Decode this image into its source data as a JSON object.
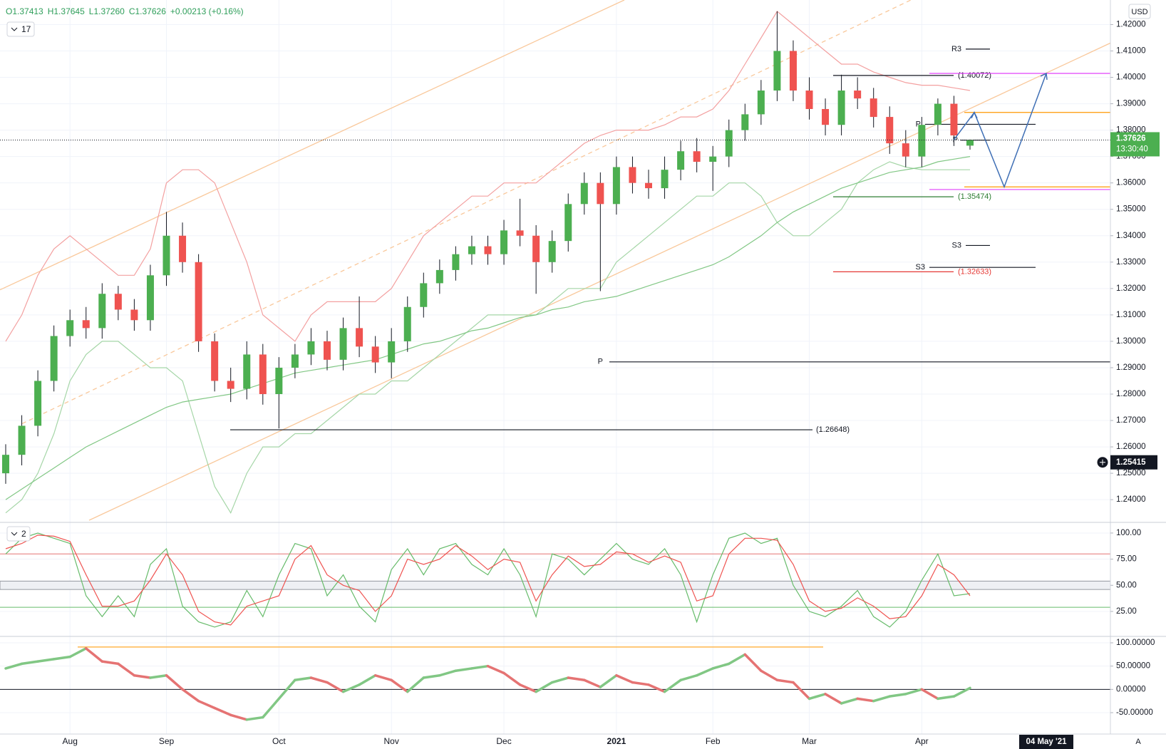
{
  "chart_data": {
    "type": "candlestick",
    "legend_items": [
      "O1.37413",
      "H1.37645",
      "L1.37260",
      "C1.37626",
      "+0.00213 (+0.16%)"
    ],
    "indicator_count": "17",
    "currency": "USD",
    "categories": [
      "",
      "",
      "",
      "",
      "Aug",
      null,
      null,
      null,
      null,
      null,
      "Sep",
      null,
      null,
      null,
      null,
      null,
      null,
      "Oct",
      null,
      null,
      null,
      null,
      null,
      null,
      "Nov",
      null,
      null,
      null,
      null,
      null,
      null,
      "Dec",
      null,
      null,
      null,
      null,
      null,
      null,
      "2021",
      null,
      null,
      null,
      null,
      null,
      "Feb",
      null,
      null,
      null,
      null,
      null,
      "Mar",
      null,
      null,
      null,
      null,
      null,
      null,
      "Apr",
      null,
      null,
      null
    ],
    "open": [
      1.25,
      1.257,
      1.268,
      1.285,
      1.302,
      1.308,
      1.305,
      1.318,
      1.312,
      1.308,
      1.325,
      1.34,
      1.33,
      1.3,
      1.285,
      1.282,
      1.295,
      1.28,
      1.29,
      1.295,
      1.3,
      1.293,
      1.305,
      1.298,
      1.292,
      1.3,
      1.313,
      1.322,
      1.327,
      1.333,
      1.336,
      1.333,
      1.342,
      1.34,
      1.33,
      1.338,
      1.352,
      1.36,
      1.352,
      1.366,
      1.36,
      1.358,
      1.365,
      1.372,
      1.368,
      1.37,
      1.38,
      1.386,
      1.395,
      1.41,
      1.395,
      1.388,
      1.382,
      1.395,
      1.392,
      1.385,
      1.375,
      1.37,
      1.382,
      1.39,
      1.37413
    ],
    "high": [
      1.261,
      1.272,
      1.289,
      1.306,
      1.312,
      1.313,
      1.322,
      1.321,
      1.316,
      1.329,
      1.349,
      1.345,
      1.333,
      1.303,
      1.29,
      1.3,
      1.299,
      1.294,
      1.299,
      1.305,
      1.304,
      1.309,
      1.317,
      1.302,
      1.305,
      1.317,
      1.326,
      1.331,
      1.336,
      1.34,
      1.34,
      1.346,
      1.354,
      1.344,
      1.342,
      1.356,
      1.364,
      1.364,
      1.37,
      1.37,
      1.365,
      1.37,
      1.376,
      1.377,
      1.374,
      1.384,
      1.39,
      1.399,
      1.425,
      1.414,
      1.4,
      1.392,
      1.401,
      1.4,
      1.396,
      1.389,
      1.38,
      1.385,
      1.392,
      1.393,
      1.37645
    ],
    "low": [
      1.246,
      1.253,
      1.264,
      1.281,
      1.298,
      1.301,
      1.301,
      1.308,
      1.304,
      1.304,
      1.321,
      1.326,
      1.296,
      1.281,
      1.277,
      1.278,
      1.276,
      1.267,
      1.286,
      1.291,
      1.289,
      1.289,
      1.294,
      1.288,
      1.286,
      1.296,
      1.309,
      1.318,
      1.323,
      1.329,
      1.329,
      1.329,
      1.336,
      1.318,
      1.326,
      1.334,
      1.348,
      1.319,
      1.348,
      1.356,
      1.354,
      1.354,
      1.361,
      1.364,
      1.357,
      1.366,
      1.376,
      1.382,
      1.391,
      1.391,
      1.384,
      1.378,
      1.378,
      1.388,
      1.381,
      1.371,
      1.366,
      1.366,
      1.378,
      1.374,
      1.3726
    ],
    "close": [
      1.257,
      1.268,
      1.285,
      1.302,
      1.308,
      1.305,
      1.318,
      1.312,
      1.308,
      1.325,
      1.34,
      1.33,
      1.3,
      1.285,
      1.282,
      1.295,
      1.28,
      1.29,
      1.295,
      1.3,
      1.293,
      1.305,
      1.298,
      1.292,
      1.3,
      1.313,
      1.322,
      1.327,
      1.333,
      1.336,
      1.333,
      1.342,
      1.34,
      1.33,
      1.338,
      1.352,
      1.36,
      1.352,
      1.366,
      1.36,
      1.358,
      1.365,
      1.372,
      1.368,
      1.37,
      1.38,
      1.386,
      1.395,
      1.41,
      1.395,
      1.388,
      1.382,
      1.395,
      1.392,
      1.385,
      1.375,
      1.37,
      1.382,
      1.39,
      1.378,
      1.37626
    ],
    "up_color": "#4caf50",
    "down_color": "#ef5350",
    "upper_band": {
      "color": "#f3a0a0",
      "values": [
        1.3,
        1.31,
        1.325,
        1.335,
        1.34,
        1.335,
        1.33,
        1.325,
        1.325,
        1.335,
        1.36,
        1.365,
        1.365,
        1.36,
        1.345,
        1.33,
        1.31,
        1.305,
        1.3,
        1.31,
        1.315,
        1.315,
        1.315,
        1.315,
        1.32,
        1.33,
        1.34,
        1.345,
        1.35,
        1.355,
        1.355,
        1.36,
        1.36,
        1.36,
        1.365,
        1.37,
        1.375,
        1.378,
        1.38,
        1.38,
        1.38,
        1.382,
        1.385,
        1.385,
        1.388,
        1.395,
        1.405,
        1.415,
        1.425,
        1.42,
        1.415,
        1.41,
        1.405,
        1.405,
        1.402,
        1.4,
        1.398,
        1.397,
        1.397,
        1.396,
        1.395
      ]
    },
    "lower_band": {
      "color": "#a5d6a7",
      "values": [
        1.235,
        1.24,
        1.25,
        1.265,
        1.285,
        1.295,
        1.3,
        1.3,
        1.295,
        1.29,
        1.29,
        1.285,
        1.265,
        1.245,
        1.235,
        1.25,
        1.26,
        1.26,
        1.265,
        1.265,
        1.27,
        1.275,
        1.28,
        1.28,
        1.285,
        1.285,
        1.29,
        1.295,
        1.3,
        1.305,
        1.31,
        1.31,
        1.31,
        1.31,
        1.315,
        1.32,
        1.32,
        1.32,
        1.33,
        1.335,
        1.34,
        1.345,
        1.35,
        1.355,
        1.355,
        1.36,
        1.36,
        1.355,
        1.345,
        1.34,
        1.34,
        1.345,
        1.35,
        1.36,
        1.365,
        1.368,
        1.366,
        1.365,
        1.365,
        1.365,
        1.365
      ]
    },
    "ma": {
      "color": "#81c784",
      "values": [
        1.24,
        1.244,
        1.248,
        1.252,
        1.256,
        1.26,
        1.263,
        1.266,
        1.269,
        1.272,
        1.275,
        1.277,
        1.278,
        1.279,
        1.28,
        1.282,
        1.284,
        1.286,
        1.288,
        1.289,
        1.29,
        1.291,
        1.292,
        1.293,
        1.295,
        1.297,
        1.299,
        1.3,
        1.302,
        1.304,
        1.305,
        1.307,
        1.309,
        1.31,
        1.312,
        1.313,
        1.315,
        1.316,
        1.317,
        1.319,
        1.321,
        1.323,
        1.325,
        1.327,
        1.329,
        1.332,
        1.336,
        1.34,
        1.345,
        1.349,
        1.352,
        1.355,
        1.358,
        1.36,
        1.362,
        1.364,
        1.365,
        1.366,
        1.368,
        1.369,
        1.37
      ]
    },
    "trend_lines": [
      {
        "values": [
          1.3195,
          1.4293
        ],
        "color": "#f9c89b"
      },
      {
        "values": [
          1.2322,
          1.413
        ],
        "color": "#f9c89b"
      },
      {
        "values": [
          1.2688,
          1.4293
        ],
        "color": "#f9c89b",
        "dashed": true
      }
    ],
    "levels": [
      {
        "label": "R3",
        "value": 1.4107,
        "color": "#131722"
      },
      {
        "label": "(1.40072)",
        "value": 1.40072,
        "color": "#131722"
      },
      {
        "label": "P",
        "value": 1.3822,
        "color": "#131722"
      },
      {
        "label": "P",
        "value": 1.3762,
        "color": "#131722"
      },
      {
        "label": "(1.35474)",
        "value": 1.35474,
        "color": "#2e7d32"
      },
      {
        "label": "S3",
        "value": 1.3363,
        "color": "#131722"
      },
      {
        "label": "S3",
        "value": 1.328,
        "color": "#131722"
      },
      {
        "label": "(1.32633)",
        "value": 1.32633,
        "color": "#e53935"
      },
      {
        "label": "P",
        "value": 1.2922,
        "color": "#131722"
      },
      {
        "label": "(1.26648)",
        "value": 1.26648,
        "color": "#131722"
      }
    ],
    "guide_lines": [
      {
        "value": 1.4015,
        "color": "#e040fb"
      },
      {
        "value": 1.3867,
        "color": "#ff9800"
      },
      {
        "value": 1.3575,
        "color": "#e040fb"
      },
      {
        "value": 1.3585,
        "color": "#ff9800"
      }
    ],
    "projection": {
      "values": [
        1.3762,
        1.3867,
        1.3585,
        1.4015
      ],
      "color": "#3f6fb5"
    },
    "ylim": [
      1.2314,
      1.4293
    ],
    "yticks": [
      {
        "value": 1.24,
        "label": "1.24000"
      },
      {
        "value": 1.25,
        "label": "1.25000"
      },
      {
        "value": 1.26,
        "label": "1.26000"
      },
      {
        "value": 1.27,
        "label": "1.27000"
      },
      {
        "value": 1.28,
        "label": "1.28000"
      },
      {
        "value": 1.29,
        "label": "1.29000"
      },
      {
        "value": 1.3,
        "label": "1.30000"
      },
      {
        "value": 1.31,
        "label": "1.31000"
      },
      {
        "value": 1.32,
        "label": "1.32000"
      },
      {
        "value": 1.33,
        "label": "1.33000"
      },
      {
        "value": 1.34,
        "label": "1.34000"
      },
      {
        "value": 1.35,
        "label": "1.35000"
      },
      {
        "value": 1.36,
        "label": "1.36000"
      },
      {
        "value": 1.37,
        "label": "1.37000"
      },
      {
        "value": 1.38,
        "label": "1.38000"
      },
      {
        "value": 1.39,
        "label": "1.39000"
      },
      {
        "value": 1.4,
        "label": "1.40000"
      },
      {
        "value": 1.41,
        "label": "1.41000"
      },
      {
        "value": 1.42,
        "label": "1.42000"
      }
    ],
    "last_price": 1.37626,
    "countdown": "13:30:40",
    "crosshair_price": 1.25415,
    "grid": true,
    "time_marker": "04 May '21",
    "scale_mode": "A",
    "stochastic": {
      "indicator_count": "2",
      "ylim": [
        1.1,
        110.2
      ],
      "yticks": [
        {
          "value": 25,
          "label": "25.00"
        },
        {
          "value": 50,
          "label": "50.00"
        },
        {
          "value": 75,
          "label": "75.00"
        },
        {
          "value": 100,
          "label": "100.00"
        }
      ],
      "upper_level": 80,
      "band": [
        46,
        54
      ],
      "lower_level": 29,
      "series": [
        {
          "color": "#66bb6a",
          "values": [
            80,
            95,
            100,
            95,
            90,
            40,
            20,
            40,
            20,
            70,
            85,
            30,
            15,
            10,
            15,
            45,
            20,
            60,
            90,
            85,
            40,
            60,
            30,
            15,
            65,
            85,
            60,
            85,
            90,
            70,
            60,
            85,
            60,
            20,
            80,
            75,
            60,
            75,
            90,
            75,
            70,
            85,
            60,
            15,
            60,
            95,
            100,
            90,
            95,
            50,
            25,
            20,
            30,
            45,
            20,
            10,
            25,
            55,
            80,
            40,
            42
          ]
        },
        {
          "color": "#ef5350",
          "values": [
            85,
            90,
            98,
            97,
            92,
            60,
            30,
            30,
            35,
            55,
            80,
            60,
            25,
            15,
            12,
            30,
            35,
            40,
            75,
            88,
            60,
            50,
            45,
            25,
            40,
            75,
            70,
            75,
            88,
            78,
            65,
            75,
            72,
            35,
            60,
            78,
            68,
            70,
            82,
            80,
            72,
            78,
            72,
            35,
            40,
            80,
            95,
            95,
            93,
            70,
            35,
            25,
            28,
            38,
            30,
            18,
            20,
            40,
            70,
            60,
            40
          ]
        }
      ]
    },
    "oscillator": {
      "ylim": [
        -95.9,
        113.8
      ],
      "yticks": [
        {
          "value": -50,
          "label": "-50.00000"
        },
        {
          "value": 0,
          "label": "0.00000"
        },
        {
          "value": 50,
          "label": "50.00000"
        },
        {
          "value": 100,
          "label": "100.00000"
        }
      ],
      "reference_line": 91,
      "values": [
        45,
        55,
        60,
        65,
        70,
        88,
        60,
        55,
        30,
        25,
        30,
        0,
        -25,
        -40,
        -55,
        -65,
        -60,
        -20,
        20,
        25,
        15,
        -5,
        10,
        30,
        20,
        -5,
        25,
        30,
        40,
        45,
        50,
        35,
        10,
        -5,
        15,
        25,
        20,
        5,
        30,
        15,
        10,
        -5,
        20,
        30,
        45,
        55,
        75,
        40,
        20,
        15,
        -20,
        -10,
        -30,
        -20,
        -25,
        -15,
        -10,
        0,
        -20,
        -15,
        3
      ]
    }
  }
}
